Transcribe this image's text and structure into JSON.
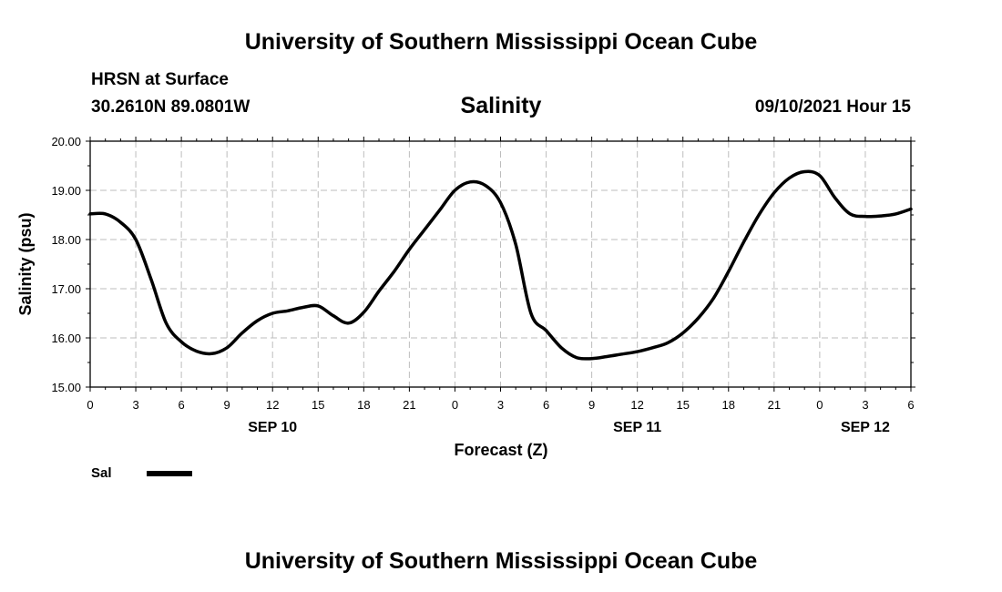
{
  "header": {
    "org_title": "University of Southern Mississippi Ocean Cube",
    "station": "HRSN at Surface",
    "coords": "30.2610N  89.0801W",
    "variable": "Salinity",
    "issued": "09/10/2021 Hour 15"
  },
  "footer": {
    "org_title": "University of Southern Mississippi Ocean Cube"
  },
  "legend": [
    {
      "name": "Sal",
      "color": "#000000"
    }
  ],
  "chart_data": {
    "type": "line",
    "xlabel": "Forecast (Z)",
    "ylabel": "Salinity (psu)",
    "ylim": [
      15.0,
      20.0
    ],
    "yticks": [
      "15.00",
      "16.00",
      "17.00",
      "18.00",
      "19.00",
      "20.00"
    ],
    "xlim": [
      0,
      54
    ],
    "xtick_step_hours": 3,
    "xtick_labels": [
      "0",
      "3",
      "6",
      "9",
      "12",
      "15",
      "18",
      "21",
      "0",
      "3",
      "6",
      "9",
      "12",
      "15",
      "18",
      "21",
      "0",
      "3",
      "6"
    ],
    "day_labels": [
      {
        "text": "SEP 10",
        "hour": 12
      },
      {
        "text": "SEP 11",
        "hour": 36
      },
      {
        "text": "SEP 12",
        "hour": 51
      }
    ],
    "grid": true,
    "series": [
      {
        "name": "Sal",
        "color": "#000000",
        "x": [
          0,
          1,
          2,
          3,
          4,
          5,
          6,
          7,
          8,
          9,
          10,
          11,
          12,
          13,
          14,
          15,
          16,
          17,
          18,
          19,
          20,
          21,
          22,
          23,
          24,
          25,
          26,
          27,
          28,
          29,
          30,
          31,
          32,
          33,
          34,
          35,
          36,
          37,
          38,
          39,
          40,
          41,
          42,
          43,
          44,
          45,
          46,
          47,
          48,
          49,
          50,
          51,
          52,
          53,
          54
        ],
        "y": [
          18.52,
          18.52,
          18.35,
          18.0,
          17.2,
          16.3,
          15.92,
          15.73,
          15.68,
          15.8,
          16.1,
          16.35,
          16.5,
          16.55,
          16.62,
          16.65,
          16.45,
          16.3,
          16.52,
          16.95,
          17.35,
          17.8,
          18.2,
          18.6,
          19.0,
          19.17,
          19.1,
          18.75,
          17.9,
          16.5,
          16.15,
          15.8,
          15.6,
          15.58,
          15.62,
          15.67,
          15.72,
          15.8,
          15.9,
          16.1,
          16.4,
          16.8,
          17.35,
          17.95,
          18.5,
          18.95,
          19.25,
          19.38,
          19.3,
          18.85,
          18.52,
          18.47,
          18.48,
          18.52,
          18.62
        ]
      }
    ]
  }
}
